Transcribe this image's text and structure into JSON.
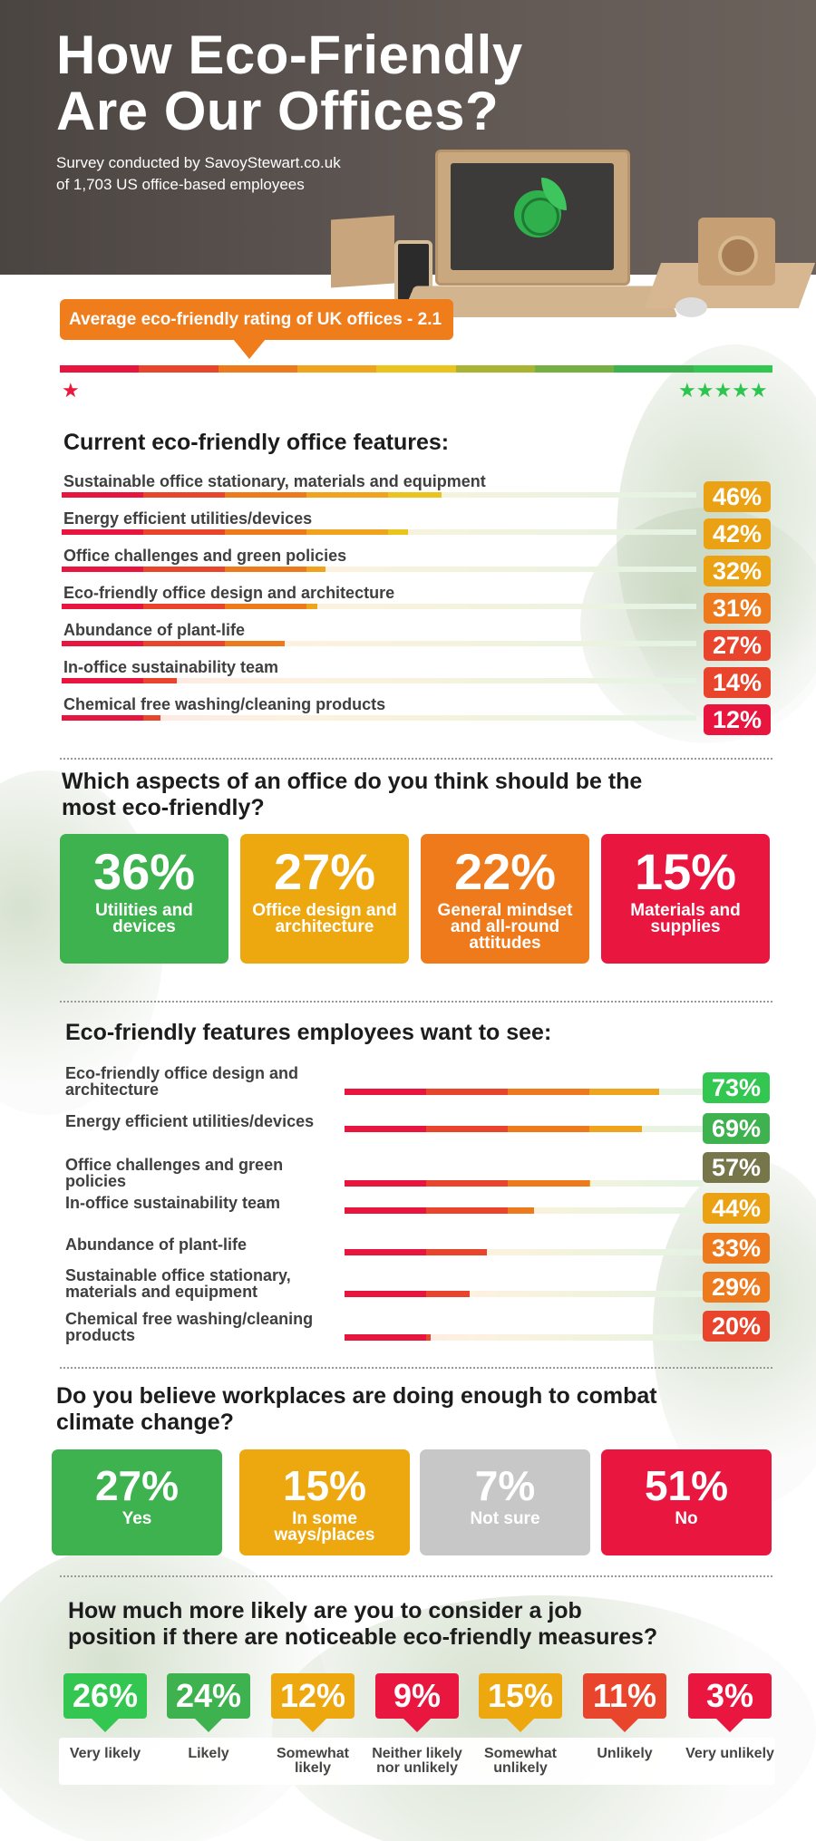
{
  "header": {
    "title_line1": "How Eco-Friendly",
    "title_line2": "Are Our Offices?",
    "subtitle_line1": "Survey conducted by SavoyStewart.co.uk",
    "subtitle_line2": "of 1,703 US office-based employees"
  },
  "rating": {
    "label": "Average eco-friendly rating of UK offices - 2.1",
    "value": 2.1,
    "min_stars": "★",
    "max_stars": "★★★★★"
  },
  "current_features": {
    "title": "Current eco-friendly office features:",
    "items": [
      {
        "label": "Sustainable office stationary, materials and equipment",
        "pct": "46%",
        "value": 46,
        "color": "#eaa214"
      },
      {
        "label": "Energy efficient utilities/devices",
        "pct": "42%",
        "value": 42,
        "color": "#eaa214"
      },
      {
        "label": "Office challenges and green policies",
        "pct": "32%",
        "value": 32,
        "color": "#eaa214"
      },
      {
        "label": "Eco-friendly office design and architecture",
        "pct": "31%",
        "value": 31,
        "color": "#ee7a1e"
      },
      {
        "label": "Abundance of plant-life",
        "pct": "27%",
        "value": 27,
        "color": "#e9442c"
      },
      {
        "label": "In-office sustainability team",
        "pct": "14%",
        "value": 14,
        "color": "#e9442c"
      },
      {
        "label": "Chemical free washing/cleaning products",
        "pct": "12%",
        "value": 12,
        "color": "#e8163e"
      }
    ]
  },
  "aspects": {
    "title_line1": "Which aspects of an office do you think should be the",
    "title_line2": "most eco-friendly?",
    "items": [
      {
        "pct": "36%",
        "label": "Utilities and devices",
        "color": "#3db24f"
      },
      {
        "pct": "27%",
        "label": "Office design and architecture",
        "color": "#eda70f"
      },
      {
        "pct": "22%",
        "label": "General mindset and all-round attitudes",
        "color": "#ee7a1c"
      },
      {
        "pct": "15%",
        "label": "Materials and supplies",
        "color": "#e9173f"
      }
    ]
  },
  "want_features": {
    "title": "Eco-friendly features employees want to see:",
    "items": [
      {
        "label": "Eco-friendly office design and architecture",
        "pct": "73%",
        "value": 73,
        "color": "#33c651"
      },
      {
        "label": "Energy efficient utilities/devices",
        "pct": "69%",
        "value": 69,
        "color": "#3db24f"
      },
      {
        "label": "Office challenges and green policies",
        "pct": "57%",
        "value": 57,
        "color": "#76764a"
      },
      {
        "label": "In-office sustainability team",
        "pct": "44%",
        "value": 44,
        "color": "#eaa214"
      },
      {
        "label": "Abundance of plant-life",
        "pct": "33%",
        "value": 33,
        "color": "#ee7a1e"
      },
      {
        "label": "Sustainable office stationary, materials and equipment",
        "pct": "29%",
        "value": 29,
        "color": "#ee7a1e"
      },
      {
        "label": "Chemical free washing/cleaning products",
        "pct": "20%",
        "value": 20,
        "color": "#e9442c"
      }
    ]
  },
  "climate": {
    "title_line1": "Do you believe workplaces are doing enough to combat",
    "title_line2": "climate change?",
    "items": [
      {
        "pct": "27%",
        "label": "Yes",
        "color": "#3db24f"
      },
      {
        "pct": "15%",
        "label": "In some ways/places",
        "color": "#eda70f"
      },
      {
        "pct": "7%",
        "label": "Not sure",
        "color": "#c7c7c7"
      },
      {
        "pct": "51%",
        "label": "No",
        "color": "#e9173f"
      }
    ]
  },
  "job": {
    "title_line1": "How much more likely are you to consider a job",
    "title_line2": "position if there are noticeable eco-friendly measures?",
    "items": [
      {
        "pct": "26%",
        "label": "Very likely",
        "color": "#33c651"
      },
      {
        "pct": "24%",
        "label": "Likely",
        "color": "#3db24f"
      },
      {
        "pct": "12%",
        "label": "Somewhat likely",
        "color": "#eda70f"
      },
      {
        "pct": "9%",
        "label": "Neither likely nor unlikely",
        "color": "#e9173f"
      },
      {
        "pct": "15%",
        "label": "Somewhat unlikely",
        "color": "#eda70f"
      },
      {
        "pct": "11%",
        "label": "Unlikely",
        "color": "#e9442c"
      },
      {
        "pct": "3%",
        "label": "Very unlikely",
        "color": "#e9173f"
      }
    ]
  }
}
